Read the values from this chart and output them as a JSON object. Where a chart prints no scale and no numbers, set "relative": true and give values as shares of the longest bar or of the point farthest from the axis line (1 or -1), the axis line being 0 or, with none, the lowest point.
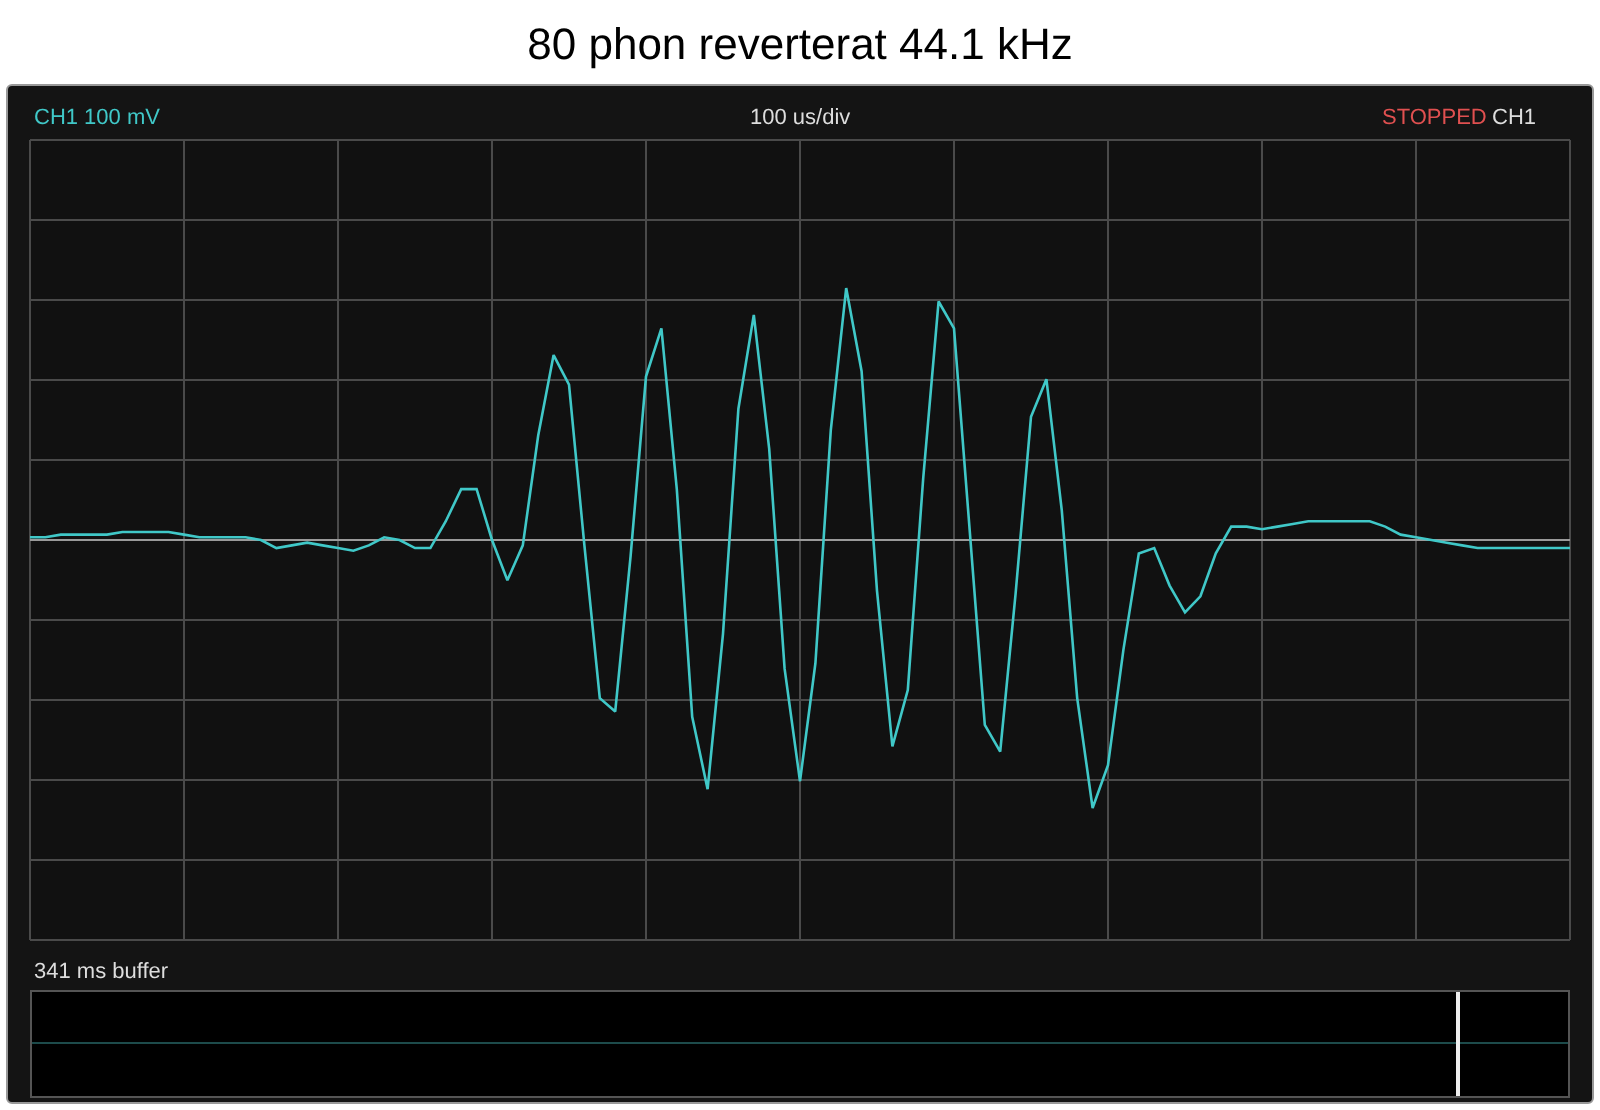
{
  "chart_data": {
    "type": "line",
    "title": "80 phon reverterat 44.1 kHz",
    "annotations": [
      "CH1 100 mV",
      "100 us/div",
      "STOPPED",
      "CH1",
      "341 ms buffer"
    ],
    "categories": [
      null,
      null,
      null,
      null,
      null,
      null,
      null,
      null,
      null,
      null,
      null,
      null,
      null,
      null,
      null,
      null,
      null,
      null,
      null,
      null,
      null,
      null,
      null,
      null,
      null,
      null,
      null,
      null,
      null,
      null,
      null,
      null,
      null,
      null,
      null,
      null,
      null,
      null,
      null,
      null,
      null,
      null,
      null,
      null,
      null,
      null,
      null,
      null,
      null,
      null,
      null,
      null,
      null,
      null,
      null,
      null,
      null,
      null,
      null,
      null,
      null,
      null,
      null,
      null,
      null,
      null,
      null,
      null,
      null,
      null,
      null,
      null,
      null,
      null,
      null,
      null,
      null,
      null,
      null,
      null,
      null,
      null,
      null,
      null,
      null,
      null,
      null,
      null,
      null,
      null,
      null,
      null,
      null,
      null,
      null,
      null,
      null,
      null,
      null,
      null,
      null
    ],
    "series": [
      {
        "color": "#40c8c8",
        "values": [
          0.01,
          0.01,
          0.02,
          0.02,
          0.02,
          0.02,
          0.03,
          0.03,
          0.03,
          0.03,
          0.02,
          0.01,
          0.01,
          0.01,
          0.01,
          0,
          -0.03,
          -0.02,
          -0.01,
          -0.02,
          -0.03,
          -0.04,
          -0.02,
          0.01,
          0,
          -0.03,
          -0.03,
          0.07,
          0.19,
          0.19,
          0,
          -0.15,
          -0.02,
          0.39,
          0.69,
          0.58,
          -0.02,
          -0.59,
          -0.64,
          -0.06,
          0.61,
          0.79,
          0.19,
          -0.66,
          -0.93,
          -0.35,
          0.49,
          0.84,
          0.34,
          -0.48,
          -0.9,
          -0.46,
          0.41,
          0.94,
          0.63,
          -0.19,
          -0.77,
          -0.56,
          0.23,
          0.89,
          0.79,
          0.05,
          -0.69,
          -0.79,
          -0.2,
          0.46,
          0.6,
          0.11,
          -0.59,
          -1,
          -0.84,
          -0.41,
          -0.05,
          -0.03,
          -0.17,
          -0.27,
          -0.21,
          -0.05,
          0.05,
          0.05,
          0.04,
          0.05,
          0.06,
          0.07,
          0.07,
          0.07,
          0.07,
          0.07,
          0.05,
          0.02,
          0.01,
          0,
          -0.01,
          -0.02,
          -0.03,
          -0.03,
          -0.03,
          -0.03,
          -0.03,
          -0.03,
          -0.03
        ]
      }
    ],
    "relative": true,
    "grid": true,
    "marker": "none"
  }
}
